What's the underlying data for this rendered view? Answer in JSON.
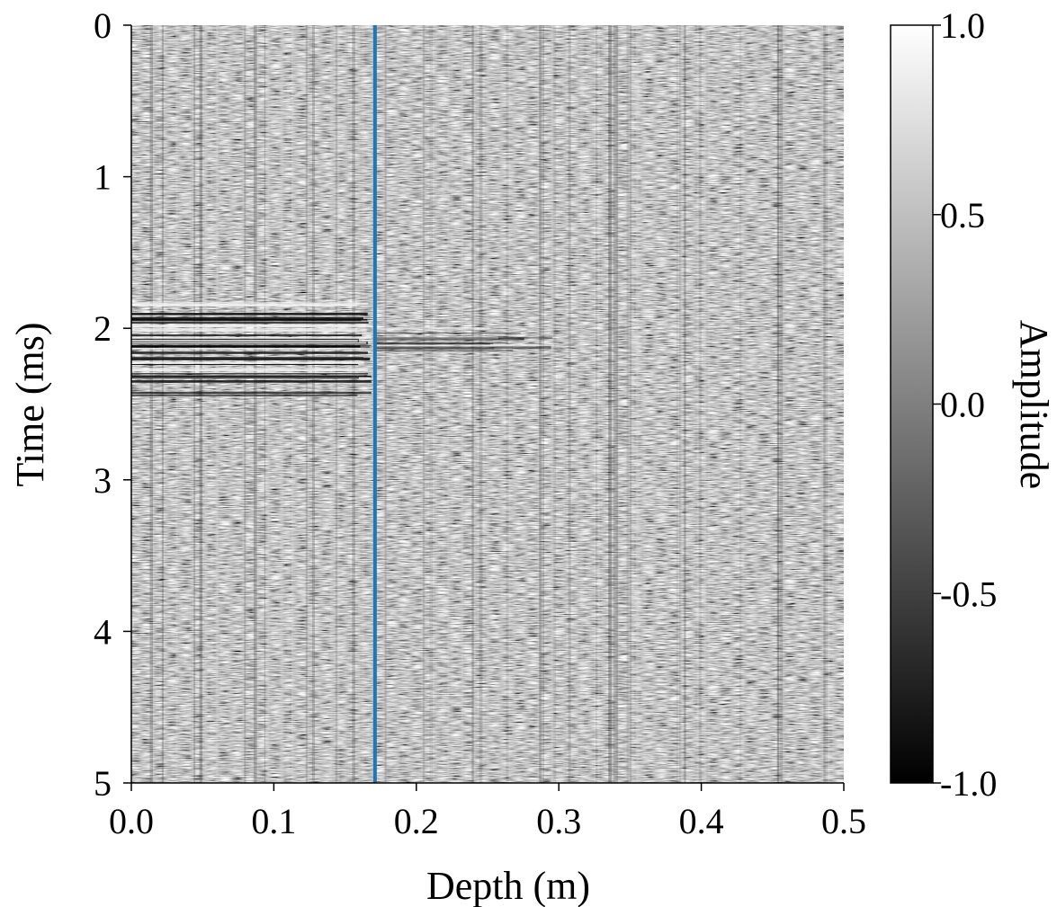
{
  "chart_data": {
    "type": "heatmap",
    "title": "",
    "xlabel": "Depth (m)",
    "ylabel": "Time (ms)",
    "colorbar_label": "Amplitude",
    "xlim": [
      0.0,
      0.5
    ],
    "ylim": [
      0,
      5
    ],
    "y_inverted": true,
    "x_ticks": [
      "0.0",
      "0.1",
      "0.2",
      "0.3",
      "0.4",
      "0.5"
    ],
    "y_ticks": [
      "0",
      "1",
      "2",
      "3",
      "4",
      "5"
    ],
    "colorbar_range": [
      -1.0,
      1.0
    ],
    "colorbar_ticks": [
      "1.0",
      "0.5",
      "0.0",
      "-0.5",
      "-1.0"
    ],
    "colormap": "gray",
    "marker_line": {
      "depth": 0.171,
      "color": "#1f77b4"
    },
    "features": [
      {
        "description": "strong horizontal reflections",
        "depth_range": [
          0.0,
          0.17
        ],
        "time_range": [
          1.82,
          2.45
        ]
      },
      {
        "description": "weaker continuation of reflections",
        "depth_range": [
          0.17,
          0.3
        ],
        "time_range": [
          2.0,
          2.15
        ]
      }
    ]
  }
}
